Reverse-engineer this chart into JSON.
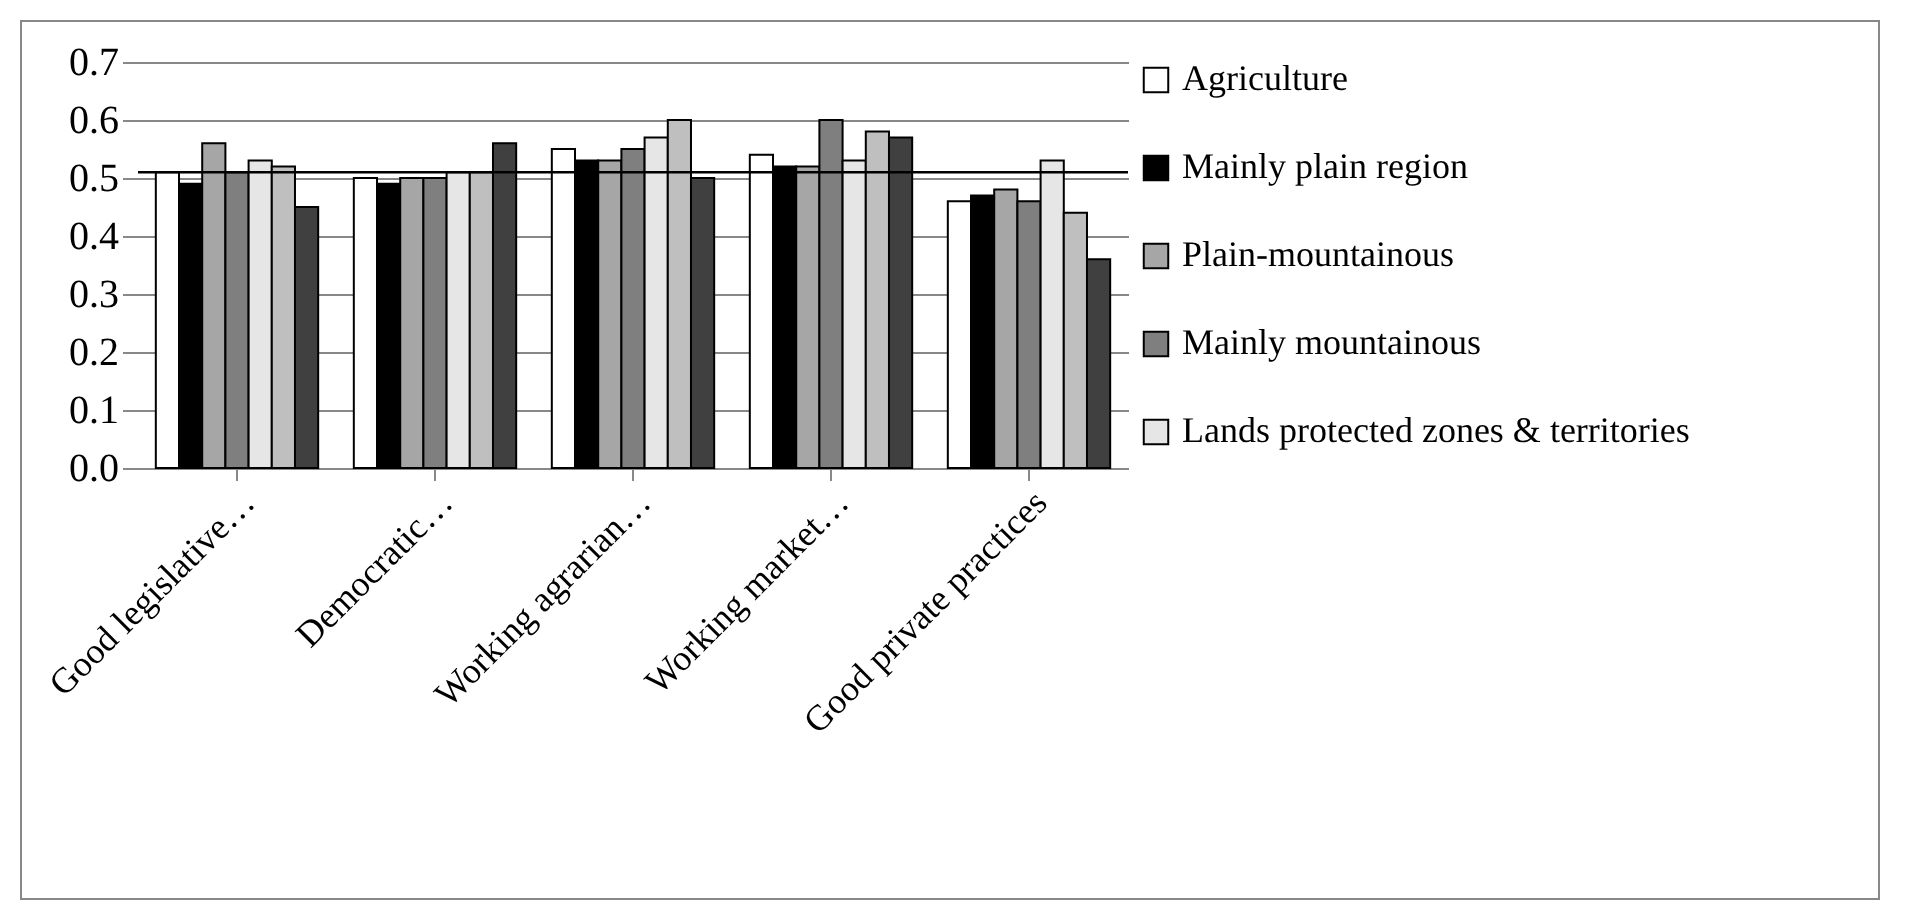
{
  "chart_data": {
    "type": "bar",
    "categories": [
      "Good legislative…",
      "Democratic…",
      "Working agrarian…",
      "Working market…",
      "Good private practices"
    ],
    "series": [
      {
        "name": "Agriculture",
        "color": "#ffffff",
        "values": [
          0.51,
          0.5,
          0.55,
          0.54,
          0.46
        ]
      },
      {
        "name": "Mainly plain region",
        "color": "#000000",
        "values": [
          0.49,
          0.49,
          0.53,
          0.52,
          0.47
        ]
      },
      {
        "name": "Plain-mountainous",
        "color": "#a6a6a6",
        "values": [
          0.56,
          0.5,
          0.53,
          0.52,
          0.48
        ]
      },
      {
        "name": "Mainly mountainous",
        "color": "#7f7f7f",
        "values": [
          0.51,
          0.5,
          0.55,
          0.6,
          0.46
        ]
      },
      {
        "name": "Lands protected zones & territories",
        "color": "#e6e6e6",
        "values": [
          0.53,
          0.51,
          0.57,
          0.53,
          0.53
        ]
      },
      {
        "color": "#bfbfbf",
        "values": [
          0.52,
          0.51,
          0.6,
          0.58,
          0.44
        ]
      },
      {
        "color": "#404040",
        "values": [
          0.45,
          0.56,
          0.5,
          0.57,
          0.36
        ]
      }
    ],
    "ylim": [
      0,
      0.7
    ],
    "yticks": [
      {
        "value": 0,
        "label": "0.0"
      },
      0.1,
      0.2,
      0.3,
      0.4,
      {
        "value": 0.5,
        "label": "0.5"
      },
      0.6,
      0.7
    ],
    "ref_lines": [
      {
        "axis": "y",
        "value": 0.51,
        "color": "#000000"
      }
    ],
    "grid": "y",
    "legend": "right"
  }
}
